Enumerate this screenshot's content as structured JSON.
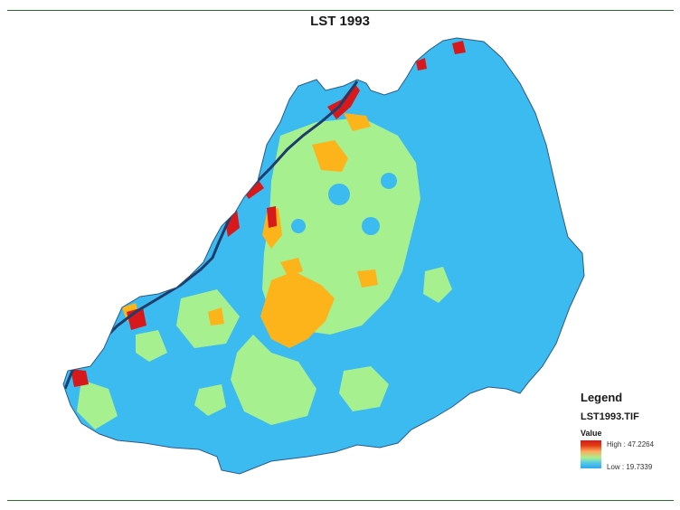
{
  "map": {
    "title": "LST 1993"
  },
  "legend": {
    "title": "Legend",
    "layer": "LST1993.TIF",
    "field": "Value",
    "high_label": "High : 47.2264",
    "low_label": "Low : 19.7339",
    "ramp_colors": [
      "#d7191c",
      "#fdae61",
      "#a6f08f",
      "#2fa7f0"
    ]
  },
  "classes_colors": {
    "hot": "#d7191c",
    "warm": "#fdb41b",
    "mild": "#a6f08f",
    "cool": "#3cbbf0",
    "river": "#1f3d6b"
  }
}
